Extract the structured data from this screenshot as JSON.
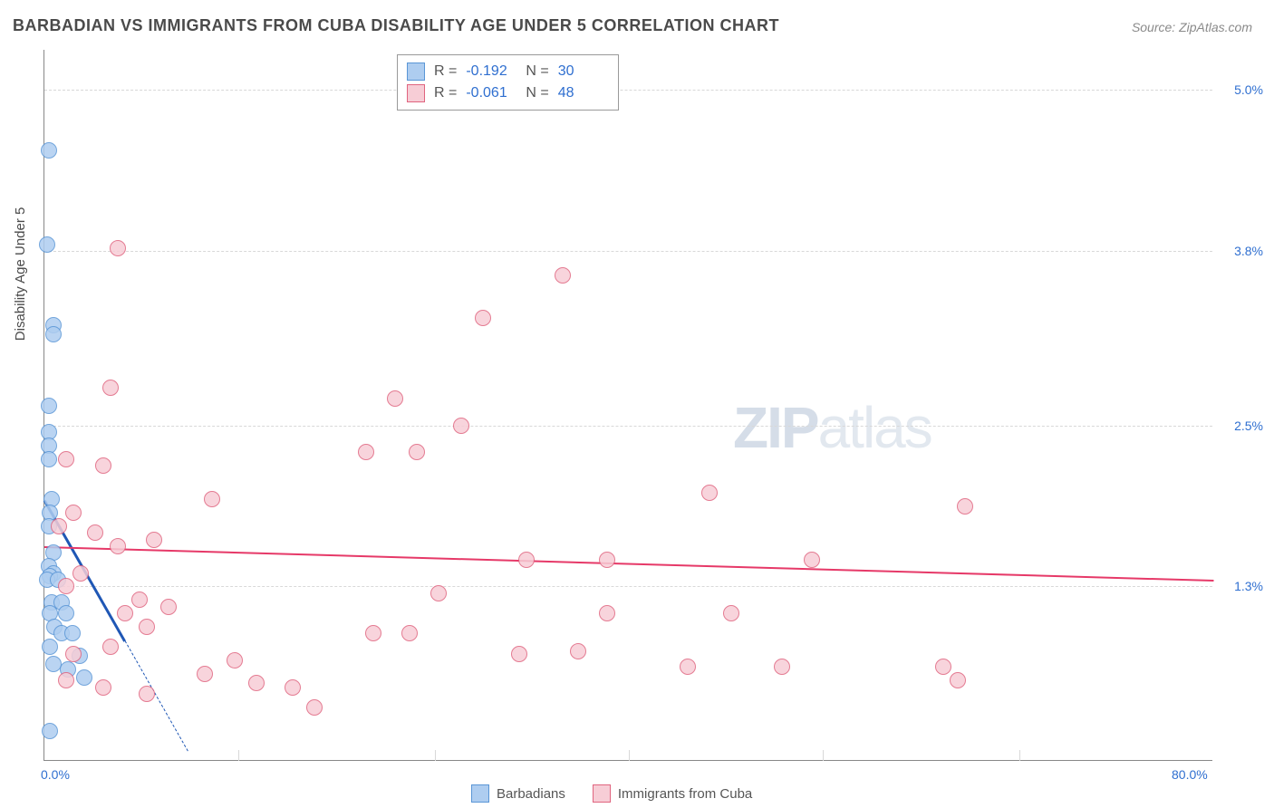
{
  "title": "BARBADIAN VS IMMIGRANTS FROM CUBA DISABILITY AGE UNDER 5 CORRELATION CHART",
  "source": "Source: ZipAtlas.com",
  "yaxis_title": "Disability Age Under 5",
  "watermark_a": "ZIP",
  "watermark_b": "atlas",
  "chart": {
    "type": "scatter",
    "background_color": "#ffffff",
    "grid_color_h": "#d8d8d8",
    "grid_color_v": "#d8d8d8",
    "axis_color": "#888888",
    "xlim": [
      0,
      80
    ],
    "ylim": [
      0,
      5.3
    ],
    "xticks": [
      {
        "pos": 0,
        "label": "0.0%"
      },
      {
        "pos": 80,
        "label": "80.0%"
      }
    ],
    "xticks_minor": [
      13.3,
      26.7,
      40,
      53.3,
      66.7
    ],
    "yticks": [
      {
        "pos": 1.3,
        "label": "1.3%"
      },
      {
        "pos": 2.5,
        "label": "2.5%"
      },
      {
        "pos": 3.8,
        "label": "3.8%"
      },
      {
        "pos": 5.0,
        "label": "5.0%"
      }
    ],
    "marker_radius": 9,
    "marker_border_width": 1.5,
    "series": [
      {
        "name": "Barbadians",
        "marker_fill": "#aecdf0",
        "marker_stroke": "#5a96d6",
        "trend_color": "#1f57b5",
        "trend_width": 3,
        "trend_dash_extend": true,
        "R": "-0.192",
        "N": "30",
        "trend": {
          "x1": 0,
          "y1": 1.95,
          "x2": 5.5,
          "y2": 0.9
        },
        "points": [
          {
            "x": 0.3,
            "y": 4.55
          },
          {
            "x": 0.2,
            "y": 3.85
          },
          {
            "x": 0.6,
            "y": 3.25
          },
          {
            "x": 0.6,
            "y": 3.18
          },
          {
            "x": 0.3,
            "y": 2.65
          },
          {
            "x": 0.3,
            "y": 2.45
          },
          {
            "x": 0.3,
            "y": 2.35
          },
          {
            "x": 0.3,
            "y": 2.25
          },
          {
            "x": 0.5,
            "y": 1.95
          },
          {
            "x": 0.4,
            "y": 1.85
          },
          {
            "x": 0.3,
            "y": 1.75
          },
          {
            "x": 0.6,
            "y": 1.55
          },
          {
            "x": 0.3,
            "y": 1.45
          },
          {
            "x": 0.6,
            "y": 1.4
          },
          {
            "x": 0.4,
            "y": 1.38
          },
          {
            "x": 0.2,
            "y": 1.35
          },
          {
            "x": 0.9,
            "y": 1.35
          },
          {
            "x": 0.5,
            "y": 1.18
          },
          {
            "x": 1.2,
            "y": 1.18
          },
          {
            "x": 0.4,
            "y": 1.1
          },
          {
            "x": 1.5,
            "y": 1.1
          },
          {
            "x": 0.7,
            "y": 1.0
          },
          {
            "x": 1.2,
            "y": 0.95
          },
          {
            "x": 1.9,
            "y": 0.95
          },
          {
            "x": 0.4,
            "y": 0.85
          },
          {
            "x": 2.4,
            "y": 0.78
          },
          {
            "x": 0.6,
            "y": 0.72
          },
          {
            "x": 1.6,
            "y": 0.68
          },
          {
            "x": 2.7,
            "y": 0.62
          },
          {
            "x": 0.4,
            "y": 0.22
          }
        ]
      },
      {
        "name": "Immigrants from Cuba",
        "marker_fill": "#f7cdd6",
        "marker_stroke": "#e0647f",
        "trend_color": "#e63968",
        "trend_width": 2.5,
        "trend_dash_extend": false,
        "R": "-0.061",
        "N": "48",
        "trend": {
          "x1": 0,
          "y1": 1.6,
          "x2": 80,
          "y2": 1.35
        },
        "points": [
          {
            "x": 5.0,
            "y": 3.82
          },
          {
            "x": 35.5,
            "y": 3.62
          },
          {
            "x": 30.0,
            "y": 3.3
          },
          {
            "x": 4.5,
            "y": 2.78
          },
          {
            "x": 24.0,
            "y": 2.7
          },
          {
            "x": 28.5,
            "y": 2.5
          },
          {
            "x": 1.5,
            "y": 2.25
          },
          {
            "x": 4.0,
            "y": 2.2
          },
          {
            "x": 22.0,
            "y": 2.3
          },
          {
            "x": 25.5,
            "y": 2.3
          },
          {
            "x": 11.5,
            "y": 1.95
          },
          {
            "x": 45.5,
            "y": 2.0
          },
          {
            "x": 63.0,
            "y": 1.9
          },
          {
            "x": 2.0,
            "y": 1.85
          },
          {
            "x": 1.0,
            "y": 1.75
          },
          {
            "x": 3.5,
            "y": 1.7
          },
          {
            "x": 7.5,
            "y": 1.65
          },
          {
            "x": 5.0,
            "y": 1.6
          },
          {
            "x": 33.0,
            "y": 1.5
          },
          {
            "x": 38.5,
            "y": 1.5
          },
          {
            "x": 52.5,
            "y": 1.5
          },
          {
            "x": 2.5,
            "y": 1.4
          },
          {
            "x": 27.0,
            "y": 1.25
          },
          {
            "x": 1.5,
            "y": 1.3
          },
          {
            "x": 6.5,
            "y": 1.2
          },
          {
            "x": 5.5,
            "y": 1.1
          },
          {
            "x": 7.0,
            "y": 1.0
          },
          {
            "x": 8.5,
            "y": 1.15
          },
          {
            "x": 22.5,
            "y": 0.95
          },
          {
            "x": 25.0,
            "y": 0.95
          },
          {
            "x": 38.5,
            "y": 1.1
          },
          {
            "x": 47.0,
            "y": 1.1
          },
          {
            "x": 32.5,
            "y": 0.8
          },
          {
            "x": 36.5,
            "y": 0.82
          },
          {
            "x": 4.5,
            "y": 0.85
          },
          {
            "x": 2.0,
            "y": 0.8
          },
          {
            "x": 11.0,
            "y": 0.65
          },
          {
            "x": 13.0,
            "y": 0.75
          },
          {
            "x": 14.5,
            "y": 0.58
          },
          {
            "x": 17.0,
            "y": 0.55
          },
          {
            "x": 18.5,
            "y": 0.4
          },
          {
            "x": 44.0,
            "y": 0.7
          },
          {
            "x": 50.5,
            "y": 0.7
          },
          {
            "x": 61.5,
            "y": 0.7
          },
          {
            "x": 62.5,
            "y": 0.6
          },
          {
            "x": 7.0,
            "y": 0.5
          },
          {
            "x": 4.0,
            "y": 0.55
          },
          {
            "x": 1.5,
            "y": 0.6
          }
        ]
      }
    ]
  },
  "legend_top": {
    "r_label": "R =",
    "n_label": "N ="
  }
}
